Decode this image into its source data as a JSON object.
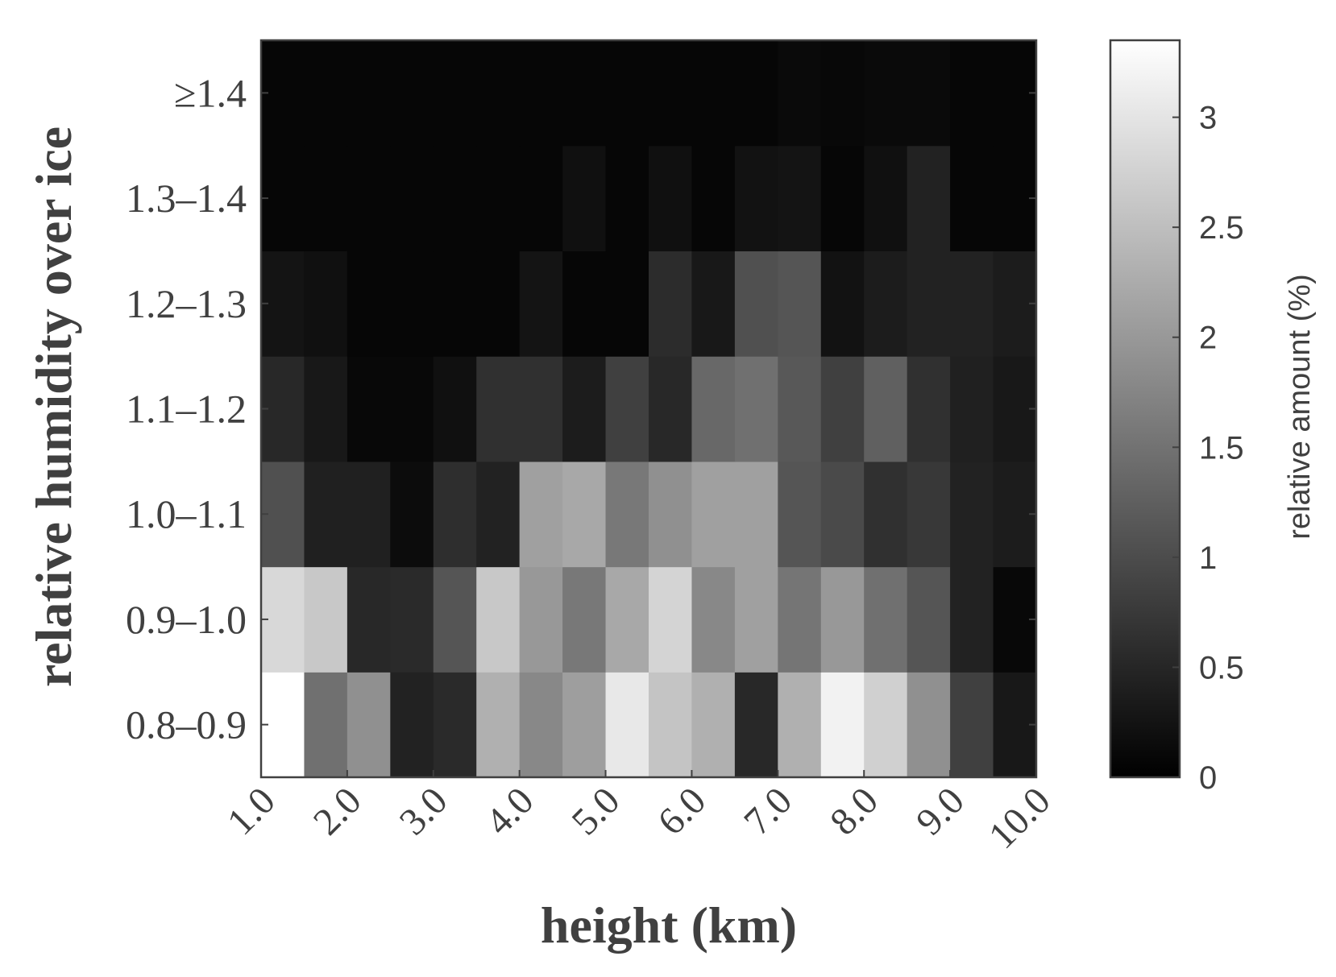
{
  "chart_data": {
    "type": "heatmap",
    "xlabel": "height (km)",
    "ylabel": "relative humidity over ice",
    "x": [
      1.0,
      1.5,
      2.0,
      2.5,
      3.0,
      3.5,
      4.0,
      4.5,
      5.0,
      5.5,
      6.0,
      6.5,
      7.0,
      7.5,
      8.0,
      8.5,
      9.0,
      9.5,
      10.0
    ],
    "xlim": [
      1,
      10
    ],
    "xticks": [
      {
        "value": 1,
        "label": "1.0"
      },
      {
        "value": 2,
        "label": "2.0"
      },
      {
        "value": 3,
        "label": "3.0"
      },
      {
        "value": 4,
        "label": "4.0"
      },
      {
        "value": 5,
        "label": "5.0"
      },
      {
        "value": 6,
        "label": "6.0"
      },
      {
        "value": 7,
        "label": "7.0"
      },
      {
        "value": 8,
        "label": "8.0"
      },
      {
        "value": 9,
        "label": "9.0"
      },
      {
        "value": 10,
        "label": "10.0"
      }
    ],
    "categories": [
      "0.8–0.9",
      "0.9–1.0",
      "1.0–1.1",
      "1.1–1.2",
      "1.2–1.3",
      "1.3–1.4",
      "≥1.4"
    ],
    "z": [
      [
        3.35,
        1.47,
        1.89,
        0.45,
        0.55,
        2.31,
        1.79,
        2.08,
        3.05,
        2.58,
        2.31,
        0.53,
        2.31,
        3.18,
        2.73,
        1.89,
        0.84,
        0.32
      ],
      [
        2.84,
        2.63,
        0.53,
        0.55,
        1.12,
        2.63,
        2.0,
        1.58,
        2.21,
        2.79,
        1.79,
        2.1,
        1.54,
        2.0,
        1.47,
        1.12,
        0.45,
        0.1
      ],
      [
        1.05,
        0.42,
        0.42,
        0.16,
        0.6,
        0.45,
        2.1,
        2.21,
        1.58,
        1.89,
        2.1,
        2.1,
        1.12,
        0.97,
        0.63,
        0.74,
        0.45,
        0.37
      ],
      [
        0.53,
        0.32,
        0.1,
        0.1,
        0.21,
        0.63,
        0.63,
        0.37,
        0.84,
        0.53,
        1.37,
        1.47,
        1.16,
        0.84,
        1.26,
        0.63,
        0.42,
        0.32
      ],
      [
        0.26,
        0.21,
        0.08,
        0.08,
        0.08,
        0.08,
        0.26,
        0.08,
        0.08,
        0.58,
        0.32,
        1.05,
        1.12,
        0.24,
        0.37,
        0.45,
        0.45,
        0.37
      ],
      [
        0.08,
        0.08,
        0.08,
        0.08,
        0.08,
        0.08,
        0.08,
        0.21,
        0.08,
        0.21,
        0.08,
        0.24,
        0.26,
        0.08,
        0.21,
        0.45,
        0.08,
        0.08
      ],
      [
        0.08,
        0.08,
        0.08,
        0.08,
        0.08,
        0.08,
        0.08,
        0.08,
        0.08,
        0.08,
        0.08,
        0.08,
        0.13,
        0.1,
        0.13,
        0.13,
        0.08,
        0.08
      ]
    ],
    "colormap": "gray",
    "colorbar": {
      "label": "relative amount (%)",
      "lim": [
        0,
        3.35
      ],
      "ticks": [
        0,
        0.5,
        1,
        1.5,
        2,
        2.5,
        3
      ]
    }
  }
}
